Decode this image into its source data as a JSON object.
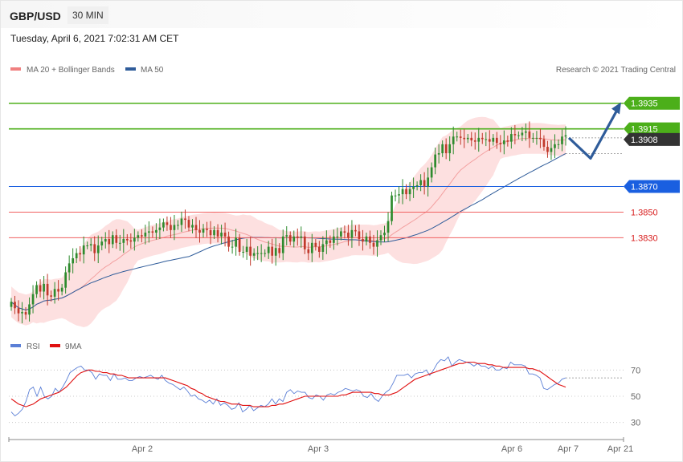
{
  "header": {
    "symbol": "GBP/USD",
    "timeframe": "30 MIN"
  },
  "datetime": "Tuesday, April 6, 2021 7:02:31 AM CET",
  "credit": "Research © 2021 Trading Central",
  "legend_price": [
    {
      "label": "MA 20 + Bollinger Bands",
      "color": "#f08080"
    },
    {
      "label": "MA 50",
      "color": "#2f5c9a"
    }
  ],
  "legend_rsi": [
    {
      "label": "RSI",
      "color": "#5b7fd6"
    },
    {
      "label": "9MA",
      "color": "#e01010"
    }
  ],
  "colors": {
    "up": "#2e8b2e",
    "down": "#c0392b",
    "resistance": "#4caf1a",
    "pivot": "#1a5fe0",
    "support": "#f06060",
    "current": "#333333",
    "arrow": "#2f5c9a",
    "band": "#fde0e0"
  },
  "chart_data": [
    {
      "type": "candlestick",
      "y_range": [
        1.3757,
        1.3953
      ],
      "price_lines": [
        {
          "value": 1.3935,
          "label": "1.3935",
          "kind": "resistance"
        },
        {
          "value": 1.3915,
          "label": "1.3915",
          "kind": "resistance"
        },
        {
          "value": 1.3908,
          "label": "1.3908",
          "kind": "current"
        },
        {
          "value": 1.387,
          "label": "1.3870",
          "kind": "pivot"
        },
        {
          "value": 1.385,
          "label": "1.3850",
          "kind": "support"
        },
        {
          "value": 1.383,
          "label": "1.3830",
          "kind": "support"
        }
      ],
      "forecast_path": [
        1.3908,
        1.3892,
        1.3932
      ],
      "close": [
        1.378,
        1.3775,
        1.3771,
        1.3772,
        1.377,
        1.3778,
        1.3786,
        1.3793,
        1.3788,
        1.3794,
        1.3785,
        1.3784,
        1.379,
        1.3788,
        1.3791,
        1.3803,
        1.381,
        1.3814,
        1.3818,
        1.3817,
        1.3824,
        1.3824,
        1.3825,
        1.3818,
        1.3824,
        1.3827,
        1.3829,
        1.3825,
        1.3832,
        1.3826,
        1.3826,
        1.3829,
        1.3828,
        1.3827,
        1.383,
        1.3832,
        1.3831,
        1.3834,
        1.3835,
        1.3834,
        1.3836,
        1.3838,
        1.3842,
        1.384,
        1.3836,
        1.384,
        1.384,
        1.3845,
        1.3844,
        1.3838,
        1.384,
        1.3836,
        1.3834,
        1.3837,
        1.3836,
        1.3832,
        1.3836,
        1.3831,
        1.3834,
        1.3831,
        1.3823,
        1.3823,
        1.383,
        1.3819,
        1.3819,
        1.3823,
        1.3816,
        1.3818,
        1.3818,
        1.3818,
        1.3818,
        1.3823,
        1.3816,
        1.3822,
        1.3818,
        1.3831,
        1.3832,
        1.3827,
        1.3831,
        1.383,
        1.3831,
        1.3821,
        1.3818,
        1.3826,
        1.3823,
        1.3819,
        1.3825,
        1.3828,
        1.3826,
        1.3831,
        1.3831,
        1.3835,
        1.3834,
        1.383,
        1.3836,
        1.3835,
        1.3829,
        1.3827,
        1.3831,
        1.3826,
        1.3823,
        1.3828,
        1.3832,
        1.3834,
        1.3843,
        1.3863,
        1.3863,
        1.3864,
        1.3868,
        1.3864,
        1.3868,
        1.387,
        1.3871,
        1.3875,
        1.387,
        1.3877,
        1.3885,
        1.3895,
        1.3896,
        1.3903,
        1.3896,
        1.3903,
        1.3909,
        1.3909,
        1.3908,
        1.3907,
        1.3908,
        1.3906,
        1.3905,
        1.3908,
        1.3907,
        1.3907,
        1.3905,
        1.3908,
        1.3904,
        1.3903,
        1.3906,
        1.3905,
        1.3911,
        1.391,
        1.391,
        1.3912,
        1.3913,
        1.3908,
        1.3908,
        1.3908,
        1.3907,
        1.3901,
        1.3897,
        1.39,
        1.3903,
        1.3903,
        1.3909,
        1.391
      ],
      "x_ticks": [
        "Apr 2",
        "Apr 3",
        "Apr 6",
        "Apr 7",
        "Apr 21"
      ],
      "series": [
        {
          "name": "MA 20 + Bollinger Bands"
        },
        {
          "name": "MA 50"
        }
      ]
    },
    {
      "type": "line",
      "y_ticks": [
        30,
        50,
        70
      ],
      "y_range": [
        20,
        80
      ],
      "x_ticks": [
        "Apr 2",
        "Apr 3",
        "Apr 6",
        "Apr 7",
        "Apr 21"
      ],
      "series": [
        {
          "name": "RSI",
          "values": [
            38,
            35,
            37,
            40,
            46,
            55,
            57,
            50,
            57,
            50,
            48,
            50,
            56,
            53,
            57,
            62,
            68,
            70,
            72,
            73,
            70,
            70,
            68,
            63,
            67,
            66,
            66,
            62,
            67,
            63,
            63,
            64,
            62,
            62,
            64,
            65,
            64,
            65,
            66,
            64,
            63,
            66,
            62,
            60,
            59,
            57,
            55,
            57,
            54,
            50,
            51,
            48,
            47,
            45,
            47,
            44,
            48,
            43,
            45,
            43,
            40,
            41,
            45,
            38,
            40,
            43,
            39,
            41,
            43,
            42,
            44,
            48,
            44,
            48,
            46,
            53,
            55,
            52,
            54,
            53,
            53,
            49,
            48,
            51,
            50,
            47,
            51,
            52,
            51,
            53,
            54,
            56,
            55,
            54,
            55,
            54,
            50,
            49,
            52,
            48,
            46,
            50,
            53,
            55,
            60,
            66,
            66,
            66,
            67,
            64,
            67,
            68,
            68,
            70,
            66,
            70,
            75,
            78,
            77,
            80,
            73,
            76,
            78,
            77,
            76,
            75,
            73,
            75,
            73,
            73,
            71,
            73,
            70,
            70,
            72,
            71,
            76,
            74,
            74,
            74,
            73,
            67,
            67,
            66,
            64,
            56,
            55,
            57,
            59,
            60,
            63,
            64
          ]
        },
        {
          "name": "9MA",
          "values": [
            48,
            46,
            44,
            43,
            42,
            43,
            44,
            46,
            48,
            49,
            50,
            51,
            52,
            53,
            55,
            57,
            60,
            63,
            66,
            68,
            69,
            70,
            70,
            69,
            69,
            68,
            68,
            67,
            67,
            66,
            66,
            65,
            64,
            64,
            64,
            64,
            64,
            64,
            64,
            64,
            64,
            64,
            64,
            63,
            62,
            61,
            60,
            59,
            58,
            56,
            55,
            53,
            52,
            50,
            49,
            48,
            47,
            46,
            46,
            45,
            44,
            44,
            44,
            43,
            43,
            43,
            42,
            42,
            42,
            42,
            42,
            43,
            43,
            44,
            44,
            45,
            46,
            47,
            48,
            49,
            50,
            50,
            50,
            50,
            50,
            50,
            50,
            50,
            50,
            50,
            51,
            51,
            52,
            53,
            53,
            53,
            53,
            53,
            53,
            52,
            52,
            51,
            51,
            51,
            52,
            53,
            55,
            57,
            59,
            61,
            63,
            64,
            65,
            66,
            67,
            68,
            69,
            70,
            71,
            72,
            73,
            74,
            75,
            75,
            76,
            76,
            76,
            75,
            75,
            75,
            74,
            74,
            73,
            73,
            72,
            72,
            72,
            72,
            72,
            72,
            72,
            71,
            71,
            70,
            69,
            67,
            65,
            63,
            61,
            59,
            58,
            57
          ]
        }
      ]
    }
  ]
}
